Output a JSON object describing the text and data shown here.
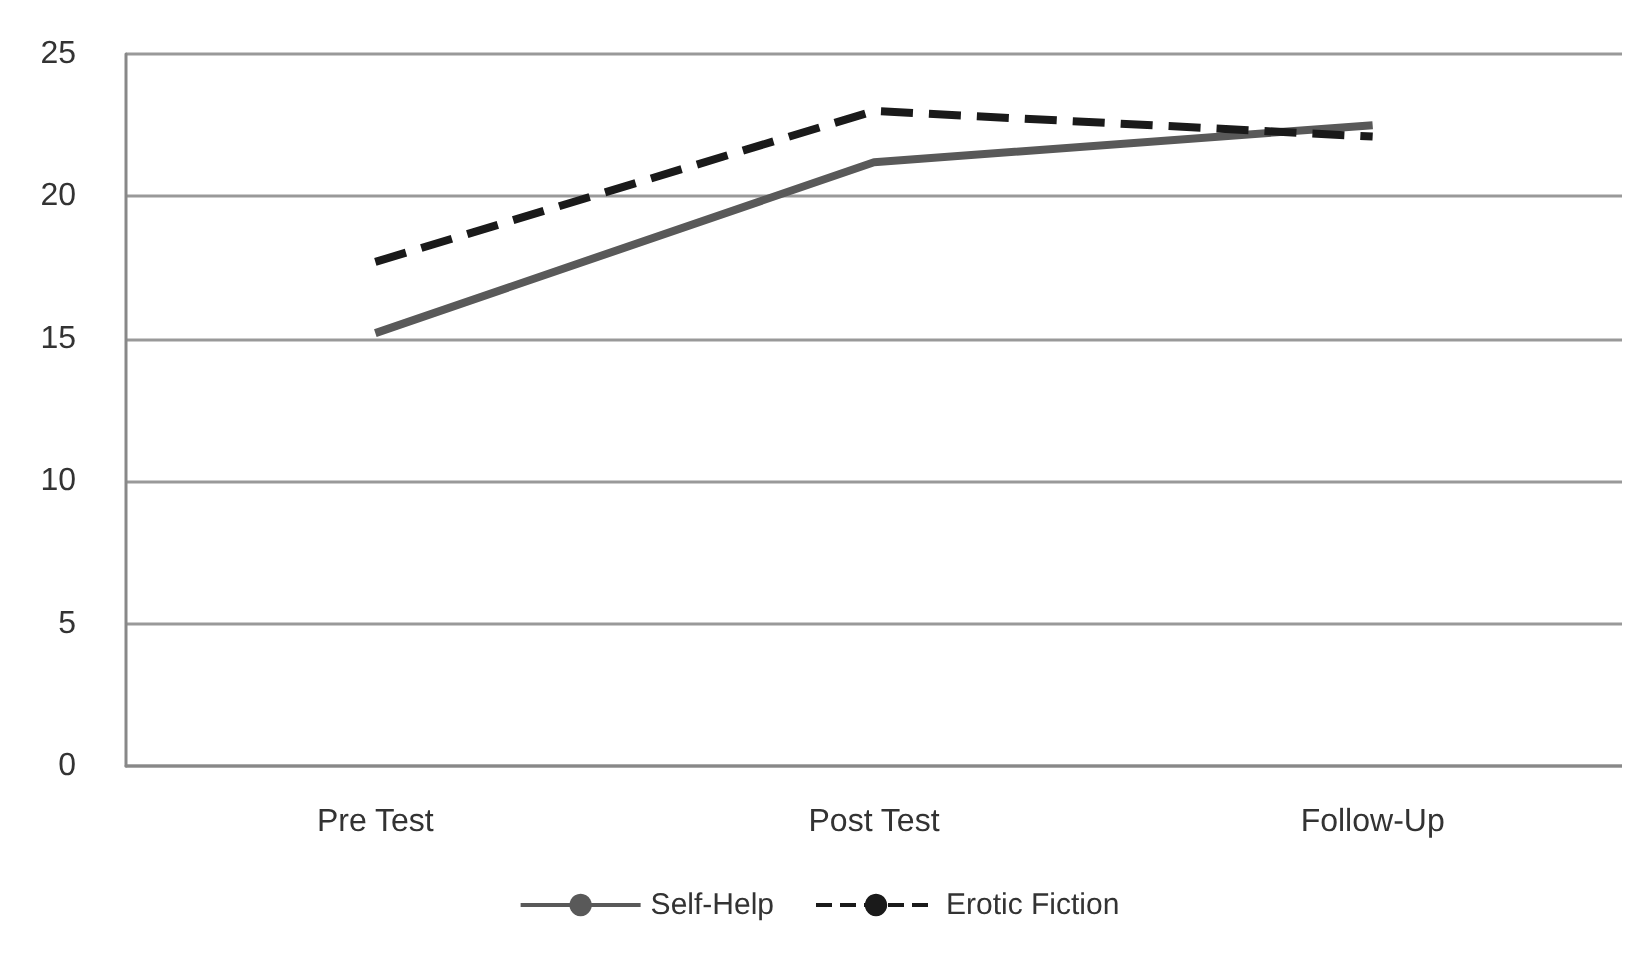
{
  "chart_data": {
    "type": "line",
    "categories": [
      "Pre Test",
      "Post Test",
      "Follow-Up"
    ],
    "series": [
      {
        "name": "Self-Help",
        "color": "#595959",
        "line_style": "solid",
        "values": [
          15.2,
          21.2,
          22.5
        ]
      },
      {
        "name": "Erotic Fiction",
        "color": "#1a1a1a",
        "line_style": "dashed",
        "values": [
          17.7,
          23.0,
          22.1
        ]
      }
    ],
    "ylim": [
      0,
      25
    ],
    "yticks": [
      0,
      5,
      10,
      15,
      20,
      25
    ],
    "grid": "y",
    "legend": "bottom",
    "marker": "none"
  }
}
